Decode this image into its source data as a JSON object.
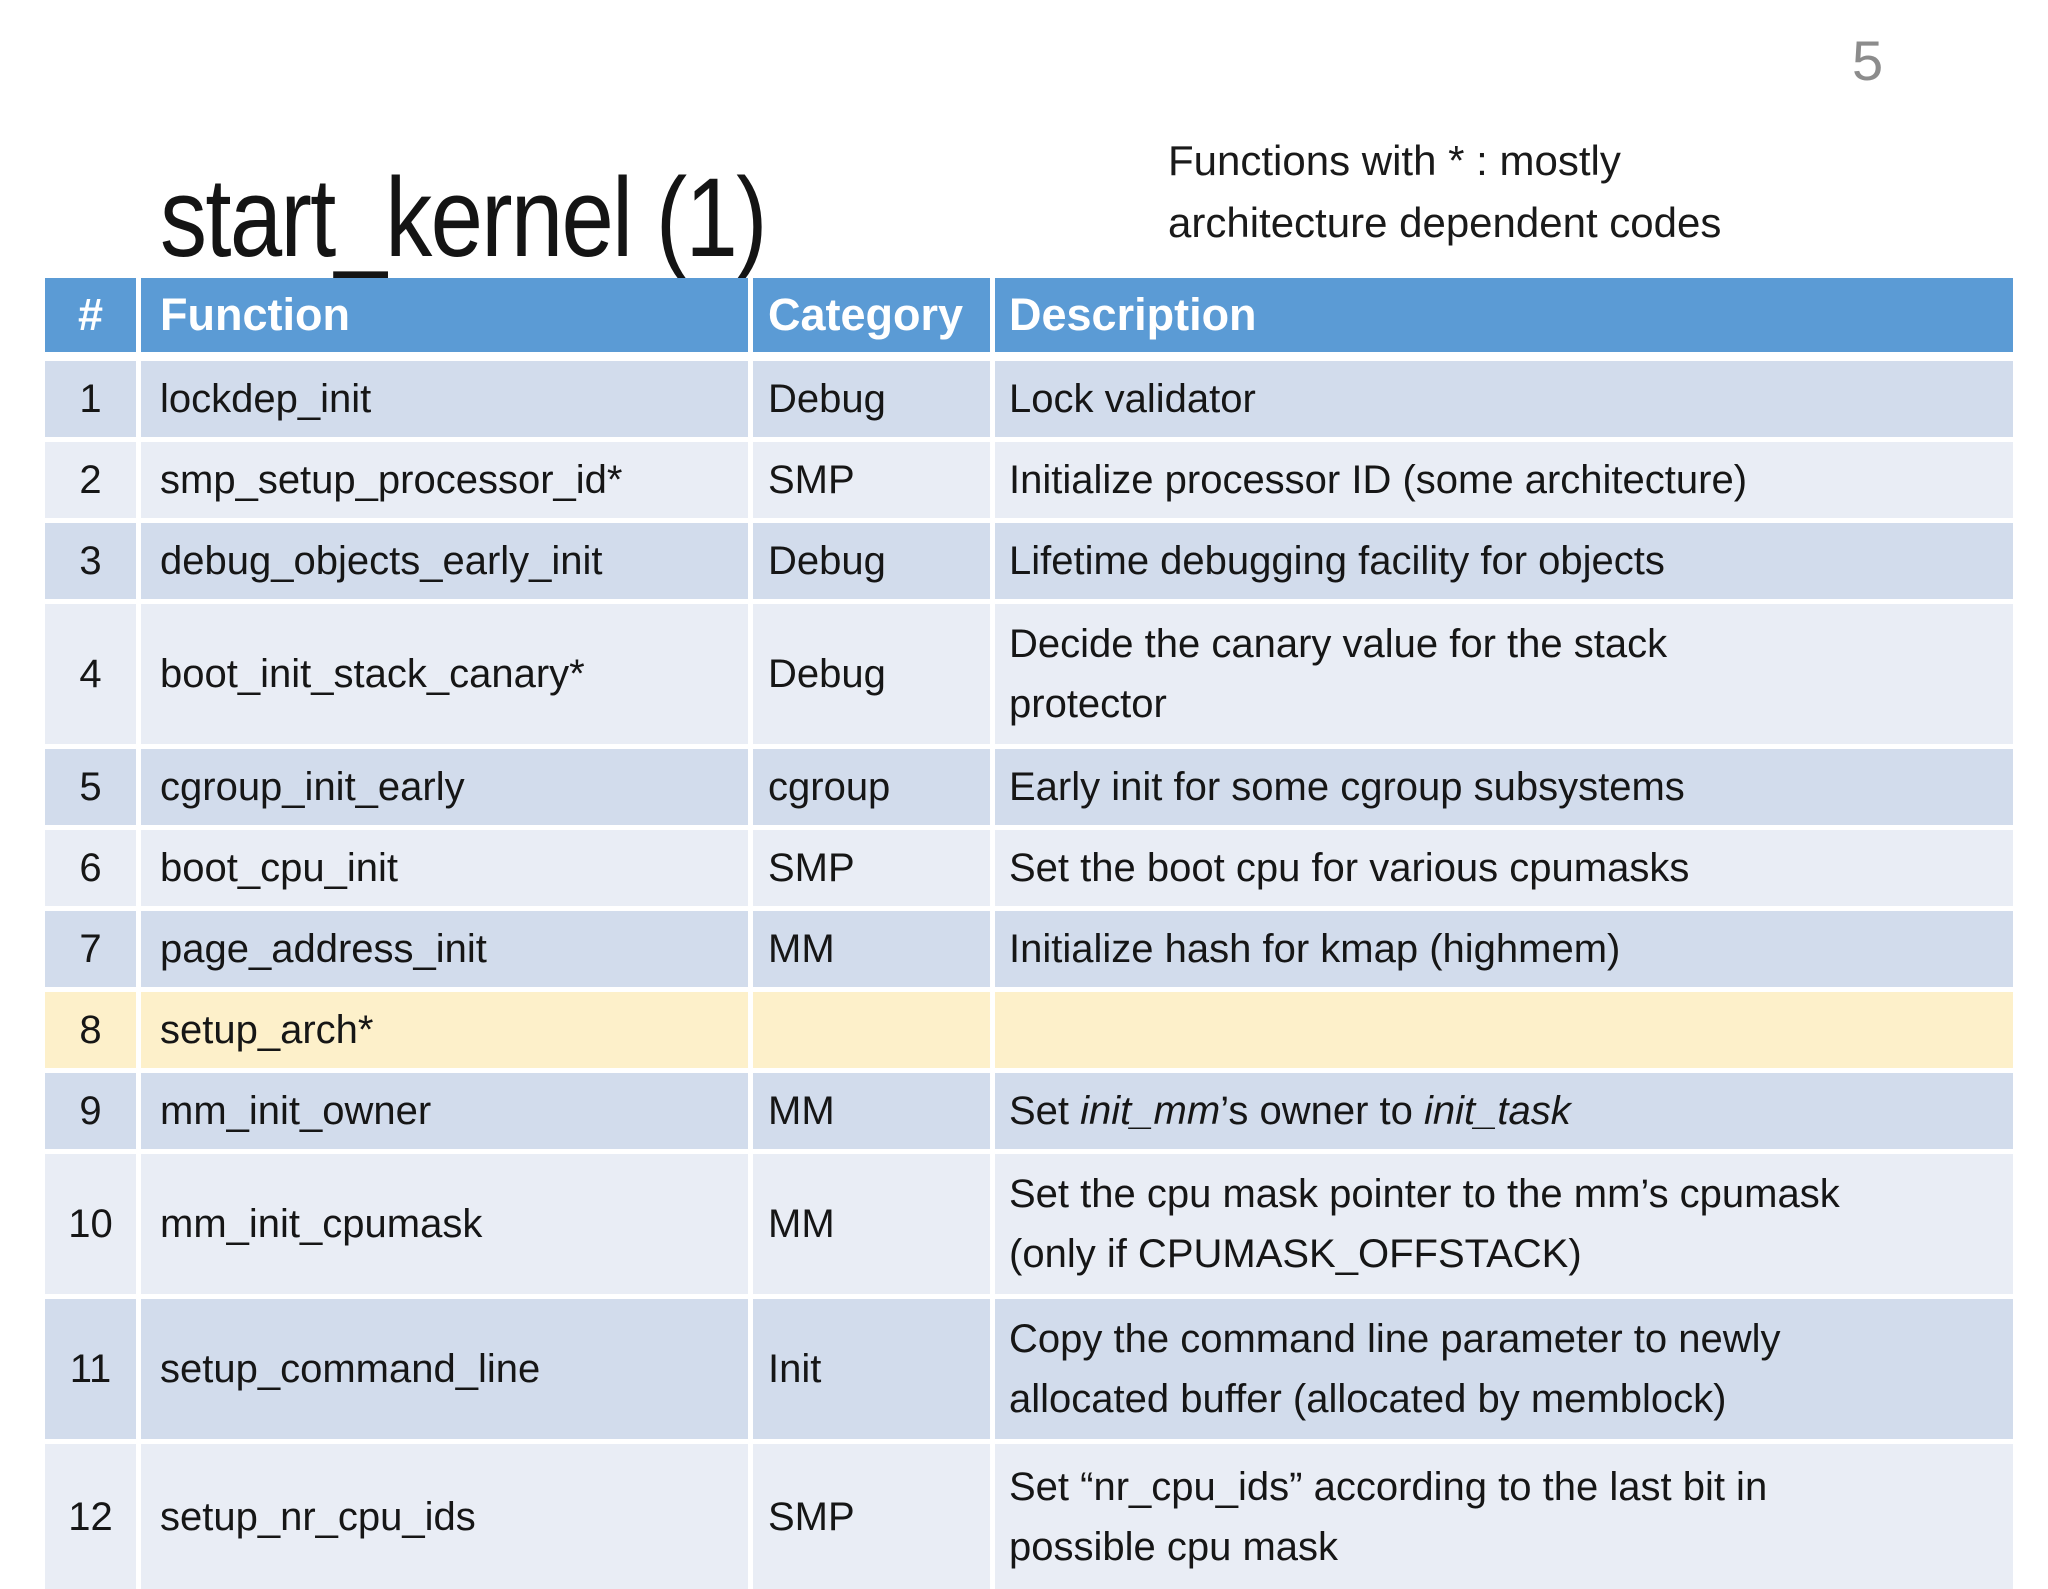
{
  "slide": {
    "page_number": "5",
    "title": "start_kernel (1)",
    "note": "Functions with * : mostly\narchitecture dependent codes"
  },
  "colors": {
    "header_bg": "#5b9bd5",
    "header_text": "#ffffff",
    "row_odd_bg": "#d2dcec",
    "row_even_bg": "#e9edf5",
    "row_highlight_bg": "#fdf0ca",
    "body_text": "#161616",
    "page_number_text": "#8c8c8c",
    "background": "#ffffff"
  },
  "table": {
    "columns": [
      "#",
      "Function",
      "Category",
      "Description"
    ],
    "rows": [
      {
        "num": "1",
        "function": "lockdep_init",
        "category": "Debug",
        "description": [
          {
            "text": "Lock validator"
          }
        ]
      },
      {
        "num": "2",
        "function": "smp_setup_processor_id*",
        "category": "SMP",
        "description": [
          {
            "text": "Initialize processor ID (some architecture)"
          }
        ]
      },
      {
        "num": "3",
        "function": "debug_objects_early_init",
        "category": "Debug",
        "description": [
          {
            "text": "Lifetime debugging facility for objects"
          }
        ]
      },
      {
        "num": "4",
        "function": "boot_init_stack_canary*",
        "category": "Debug",
        "description": [
          {
            "text": "Decide the canary value for the stack"
          },
          {
            "br": true
          },
          {
            "text": "protector"
          }
        ]
      },
      {
        "num": "5",
        "function": "cgroup_init_early",
        "category": "cgroup",
        "description": [
          {
            "text": "Early init for some cgroup subsystems"
          }
        ]
      },
      {
        "num": "6",
        "function": "boot_cpu_init",
        "category": "SMP",
        "description": [
          {
            "text": "Set the boot cpu for various cpumasks"
          }
        ]
      },
      {
        "num": "7",
        "function": "page_address_init",
        "category": "MM",
        "description": [
          {
            "text": "Initialize hash for kmap (highmem)"
          }
        ]
      },
      {
        "num": "8",
        "function": "setup_arch*",
        "category": "",
        "description": [],
        "highlight": true
      },
      {
        "num": "9",
        "function": "mm_init_owner",
        "category": "MM",
        "description": [
          {
            "text": "Set "
          },
          {
            "text": "init_mm",
            "italic": true
          },
          {
            "text": "’s owner to "
          },
          {
            "text": "init_task",
            "italic": true
          }
        ]
      },
      {
        "num": "10",
        "function": "mm_init_cpumask",
        "category": "MM",
        "description": [
          {
            "text": "Set the cpu mask pointer to the mm’s cpumask"
          },
          {
            "br": true
          },
          {
            "text": "(only if CPUMASK_OFFSTACK)"
          }
        ]
      },
      {
        "num": "11",
        "function": "setup_command_line",
        "category": "Init",
        "description": [
          {
            "text": "Copy the command line parameter to newly"
          },
          {
            "br": true
          },
          {
            "text": "allocated buffer (allocated by memblock)"
          }
        ]
      },
      {
        "num": "12",
        "function": "setup_nr_cpu_ids",
        "category": "SMP",
        "description": [
          {
            "text": "Set “nr_cpu_ids” according to the last bit in"
          },
          {
            "br": true
          },
          {
            "text": "possible cpu mask"
          }
        ]
      }
    ]
  }
}
